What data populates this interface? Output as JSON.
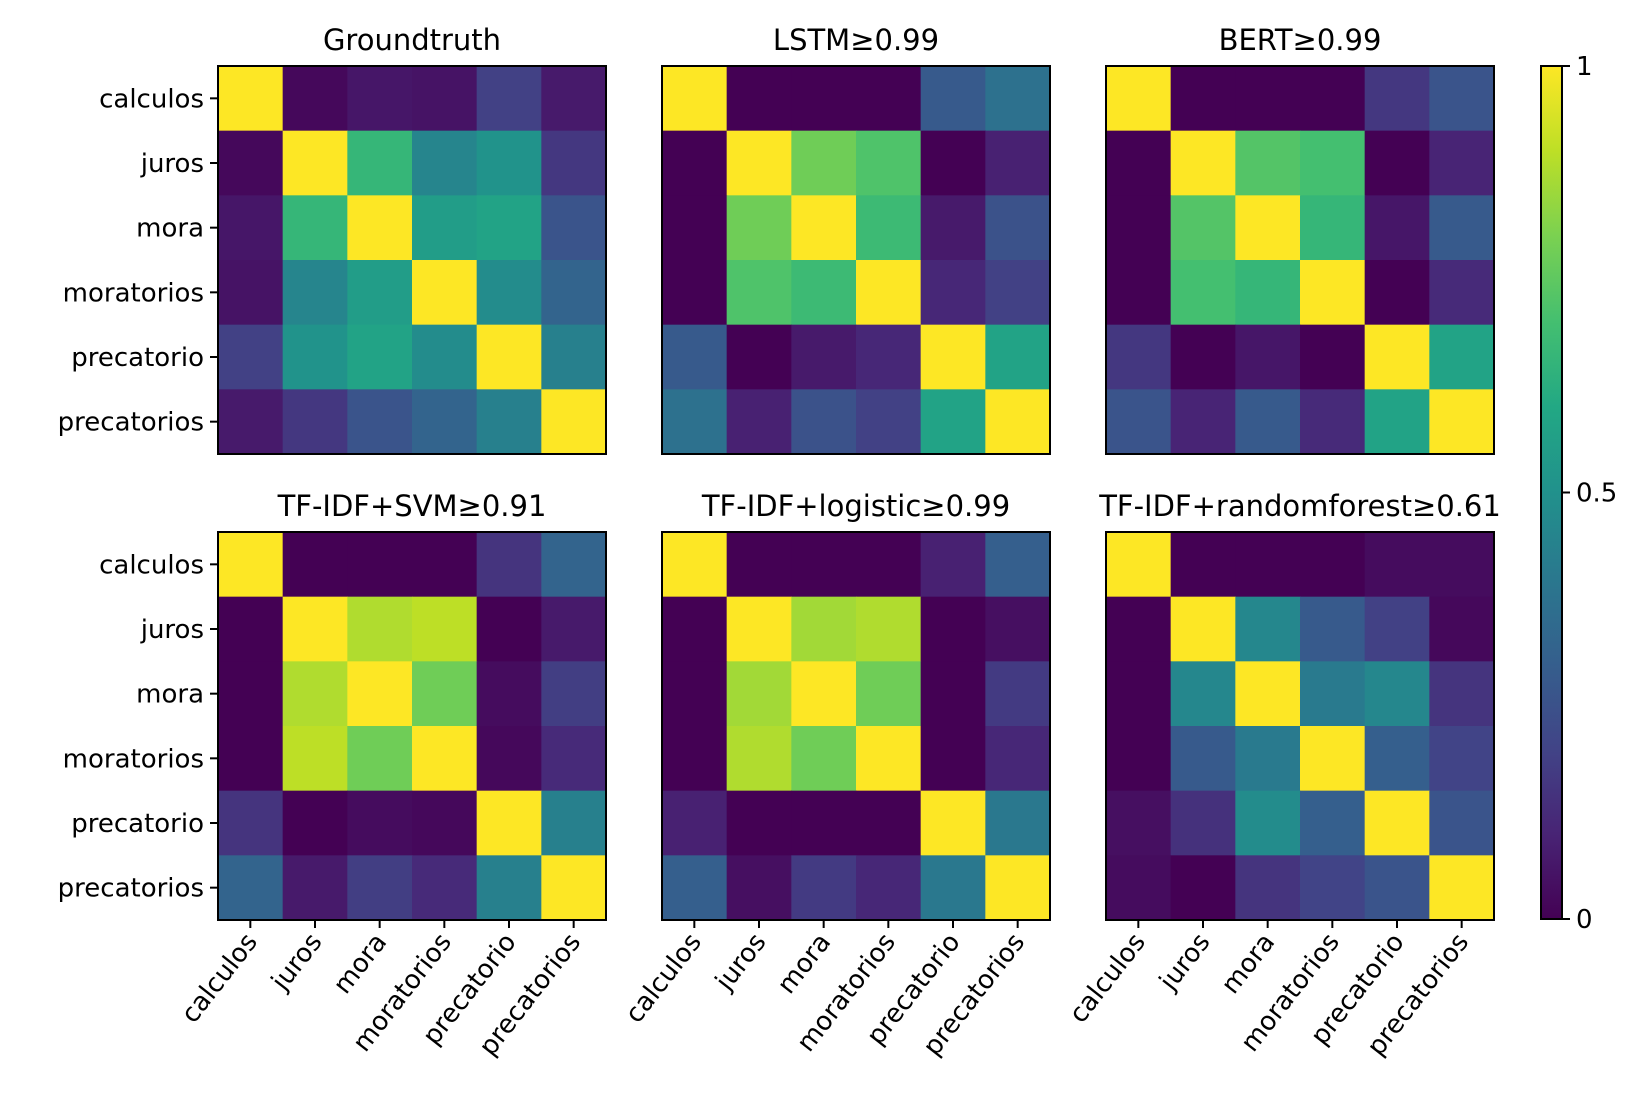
{
  "chart_data": {
    "type": "heatmap",
    "labels": [
      "calculos",
      "juros",
      "mora",
      "moratorios",
      "precatorio",
      "precatorios"
    ],
    "colormap": "viridis",
    "colorbar": {
      "min": 0,
      "max": 1,
      "ticks": [
        {
          "value": 1,
          "label": "1"
        },
        {
          "value": 0.5,
          "label": "0.5"
        },
        {
          "value": 0,
          "label": "0"
        }
      ]
    },
    "panels": [
      {
        "title": "Groundtruth",
        "matrix": [
          [
            1.0,
            0.02,
            0.06,
            0.05,
            0.19,
            0.07
          ],
          [
            0.02,
            1.0,
            0.66,
            0.45,
            0.51,
            0.16
          ],
          [
            0.06,
            0.66,
            1.0,
            0.55,
            0.58,
            0.26
          ],
          [
            0.05,
            0.45,
            0.55,
            1.0,
            0.48,
            0.32
          ],
          [
            0.19,
            0.51,
            0.58,
            0.48,
            1.0,
            0.43
          ],
          [
            0.07,
            0.16,
            0.26,
            0.32,
            0.43,
            1.0
          ]
        ]
      },
      {
        "title": "LSTM≥0.99",
        "matrix": [
          [
            1.0,
            0.0,
            0.0,
            0.0,
            0.28,
            0.37
          ],
          [
            0.0,
            1.0,
            0.78,
            0.72,
            0.0,
            0.09
          ],
          [
            0.0,
            0.78,
            1.0,
            0.68,
            0.07,
            0.25
          ],
          [
            0.0,
            0.72,
            0.68,
            1.0,
            0.11,
            0.19
          ],
          [
            0.28,
            0.0,
            0.07,
            0.11,
            1.0,
            0.58
          ],
          [
            0.37,
            0.09,
            0.25,
            0.19,
            0.58,
            1.0
          ]
        ]
      },
      {
        "title": "BERT≥0.99",
        "matrix": [
          [
            1.0,
            0.0,
            0.0,
            0.0,
            0.16,
            0.26
          ],
          [
            0.0,
            1.0,
            0.73,
            0.7,
            0.0,
            0.1
          ],
          [
            0.0,
            0.73,
            1.0,
            0.66,
            0.06,
            0.28
          ],
          [
            0.0,
            0.7,
            0.66,
            1.0,
            0.0,
            0.12
          ],
          [
            0.16,
            0.0,
            0.06,
            0.0,
            1.0,
            0.58
          ],
          [
            0.26,
            0.1,
            0.28,
            0.12,
            0.58,
            1.0
          ]
        ]
      },
      {
        "title": "TF-IDF+SVM≥0.91",
        "matrix": [
          [
            1.0,
            0.0,
            0.0,
            0.0,
            0.15,
            0.32
          ],
          [
            0.0,
            1.0,
            0.88,
            0.9,
            0.0,
            0.07
          ],
          [
            0.0,
            0.88,
            1.0,
            0.78,
            0.03,
            0.18
          ],
          [
            0.0,
            0.9,
            0.78,
            1.0,
            0.02,
            0.12
          ],
          [
            0.15,
            0.0,
            0.03,
            0.02,
            1.0,
            0.43
          ],
          [
            0.32,
            0.07,
            0.18,
            0.12,
            0.43,
            1.0
          ]
        ]
      },
      {
        "title": "TF-IDF+logistic≥0.99",
        "matrix": [
          [
            1.0,
            0.0,
            0.0,
            0.0,
            0.09,
            0.3
          ],
          [
            0.0,
            1.0,
            0.86,
            0.88,
            0.0,
            0.04
          ],
          [
            0.0,
            0.86,
            1.0,
            0.78,
            0.0,
            0.17
          ],
          [
            0.0,
            0.88,
            0.78,
            1.0,
            0.0,
            0.11
          ],
          [
            0.09,
            0.0,
            0.0,
            0.0,
            1.0,
            0.4
          ],
          [
            0.3,
            0.04,
            0.17,
            0.11,
            0.4,
            1.0
          ]
        ]
      },
      {
        "title": "TF-IDF+randomforest≥0.61",
        "matrix": [
          [
            1.0,
            0.0,
            0.0,
            0.0,
            0.03,
            0.03
          ],
          [
            0.0,
            1.0,
            0.46,
            0.28,
            0.19,
            0.02
          ],
          [
            0.0,
            0.46,
            1.0,
            0.41,
            0.46,
            0.15
          ],
          [
            0.0,
            0.28,
            0.41,
            1.0,
            0.3,
            0.2
          ],
          [
            0.04,
            0.14,
            0.48,
            0.3,
            1.0,
            0.26
          ],
          [
            0.03,
            0.0,
            0.15,
            0.2,
            0.26,
            1.0
          ]
        ]
      }
    ]
  }
}
